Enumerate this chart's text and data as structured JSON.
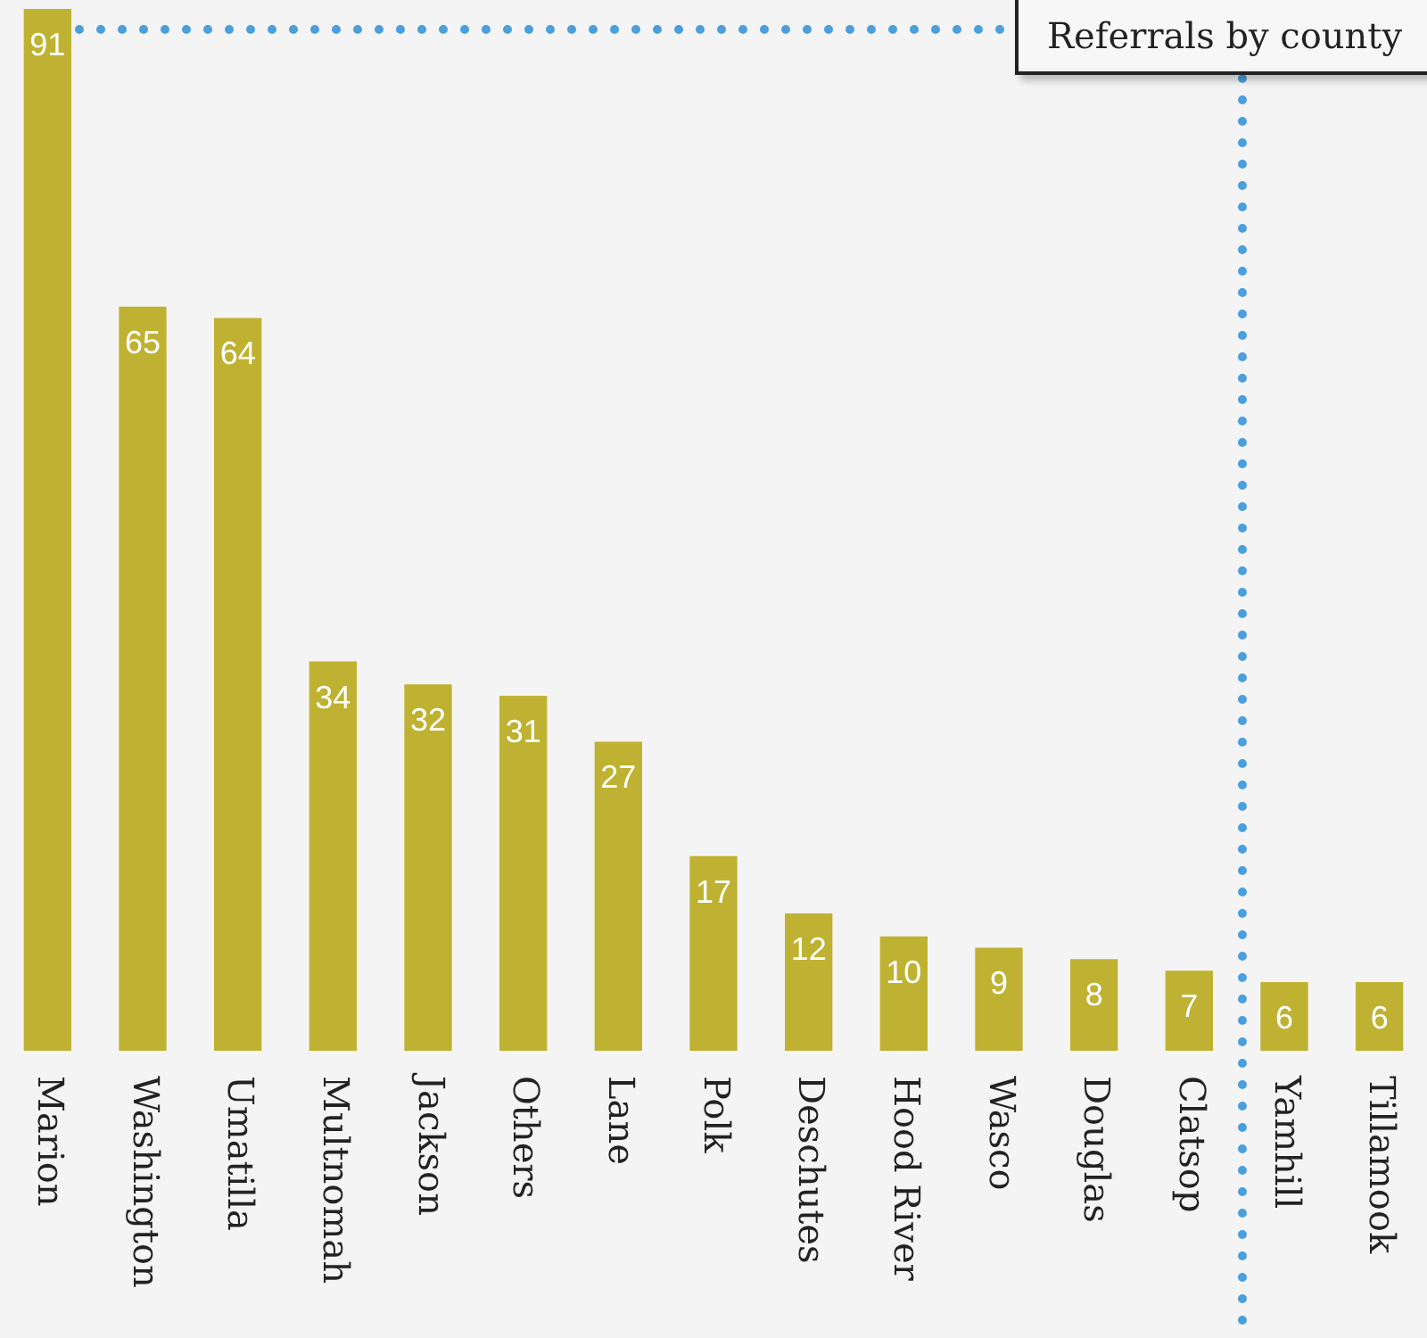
{
  "chart_data": {
    "type": "bar",
    "title": "Referrals by county",
    "categories": [
      "Marion",
      "Washington",
      "Umatilla",
      "Multnomah",
      "Jackson",
      "Others",
      "Lane",
      "Polk",
      "Deschutes",
      "Hood River",
      "Wasco",
      "Douglas",
      "Clatsop",
      "Yamhill",
      "Tillamook"
    ],
    "values": [
      91,
      65,
      64,
      34,
      32,
      31,
      27,
      17,
      12,
      10,
      9,
      8,
      7,
      6,
      6
    ],
    "color": "#bfb232",
    "data_labels": true,
    "grid": false,
    "legend": false
  }
}
